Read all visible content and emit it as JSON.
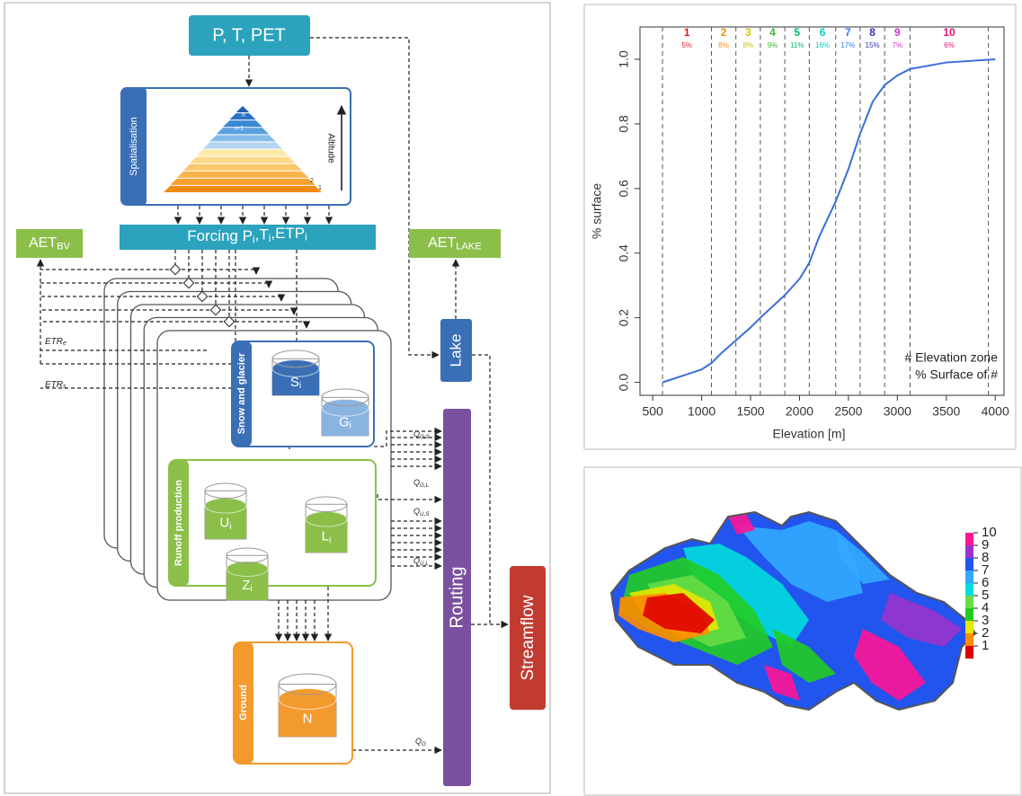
{
  "diagram": {
    "inputs": "P, T, PET",
    "spatialisation": "Spatialisation",
    "altitude": "Altitude",
    "pyramid_labels": [
      "n",
      "n-1",
      "2",
      "1"
    ],
    "forcing": [
      {
        "text": "Forcing P",
        "sub": "i"
      },
      {
        "text": ",T",
        "sub": "i"
      },
      {
        "text": ",ETP",
        "sub": "i"
      }
    ],
    "aet_bv": {
      "text": "AET",
      "sub": "BV"
    },
    "aet_lake": {
      "text": "AET",
      "sub": "LAKE"
    },
    "etr_e": {
      "text": "ETR",
      "sub": "e"
    },
    "etr_s": {
      "text": "ETR",
      "sub": "s"
    },
    "snow_glacier": "Snow and glacier",
    "snow": {
      "text": "S",
      "sub": "i"
    },
    "glacier": {
      "text": "G",
      "sub": "i"
    },
    "runoff_production": "Runoff production",
    "upper": {
      "text": "U",
      "sub": "i"
    },
    "lower": {
      "text": "L",
      "sub": "i"
    },
    "slow": {
      "text": "Z",
      "sub": "i"
    },
    "ground": "Ground",
    "ground_store": {
      "text": "N",
      "sub": ""
    },
    "lake": "Lake",
    "routing": "Routing",
    "streamflow": "Streamflow",
    "flows": [
      {
        "text": "Q",
        "sub": "G,S"
      },
      {
        "text": "Q",
        "sub": "G,L"
      },
      {
        "text": "Q",
        "sub": "U,S"
      },
      {
        "text": "Q",
        "sub": "U,L"
      },
      {
        "text": "Q",
        "sub": "G"
      }
    ]
  },
  "chart_data": {
    "type": "line",
    "x": [
      600,
      800,
      1000,
      1100,
      1200,
      1350,
      1500,
      1600,
      1850,
      2000,
      2100,
      2200,
      2370,
      2500,
      2620,
      2750,
      2870,
      3000,
      3130,
      3500,
      4000
    ],
    "values": [
      0.0,
      0.02,
      0.04,
      0.06,
      0.09,
      0.13,
      0.17,
      0.2,
      0.27,
      0.32,
      0.37,
      0.45,
      0.56,
      0.66,
      0.77,
      0.87,
      0.92,
      0.95,
      0.97,
      0.99,
      1.0
    ],
    "color": "#3a6fd8",
    "xlabel": "Elevation [m]",
    "ylabel": "% surface",
    "xlim": [
      370,
      4090
    ],
    "ylim": [
      -0.04,
      1.1
    ],
    "xticks": [
      500,
      1000,
      1500,
      2000,
      2500,
      3000,
      3500,
      4000
    ],
    "yticks": [
      {
        "value": 0,
        "label": "0.0"
      },
      0.2,
      0.4,
      0.6,
      0.8,
      {
        "value": 1,
        "label": "1.0"
      }
    ],
    "zones": {
      "boundaries": [
        600,
        1100,
        1350,
        1600,
        1850,
        2100,
        2370,
        2620,
        2870,
        3130,
        3930
      ],
      "labels": [
        "1",
        "2",
        "3",
        "4",
        "5",
        "6",
        "7",
        "8",
        "9",
        "10"
      ],
      "values": [
        5,
        8,
        8,
        9,
        11,
        16,
        17,
        15,
        7,
        6
      ],
      "value_labels": [
        "5%",
        "8%",
        "8%",
        "9%",
        "11%",
        "16%",
        "17%",
        "15%",
        "7%",
        "6%"
      ],
      "colors": [
        "#e41a1c",
        "#ff8c00",
        "#c8c800",
        "#33bb33",
        "#00bb66",
        "#00c8c8",
        "#3377ff",
        "#3333bb",
        "#cc33cc",
        "#e0157a"
      ]
    },
    "legend": [
      "#  Elevation zone",
      "%  Surface of #"
    ]
  },
  "map": {
    "legend_labels": [
      "1",
      "2",
      "3",
      "4",
      "5",
      "6",
      "7",
      "8",
      "9",
      "10"
    ],
    "colors": [
      "#e00000",
      "#ff8c00",
      "#e6e600",
      "#22cc22",
      "#66dd44",
      "#00dddd",
      "#33aaff",
      "#2255ee",
      "#9933cc",
      "#ff1493"
    ]
  }
}
